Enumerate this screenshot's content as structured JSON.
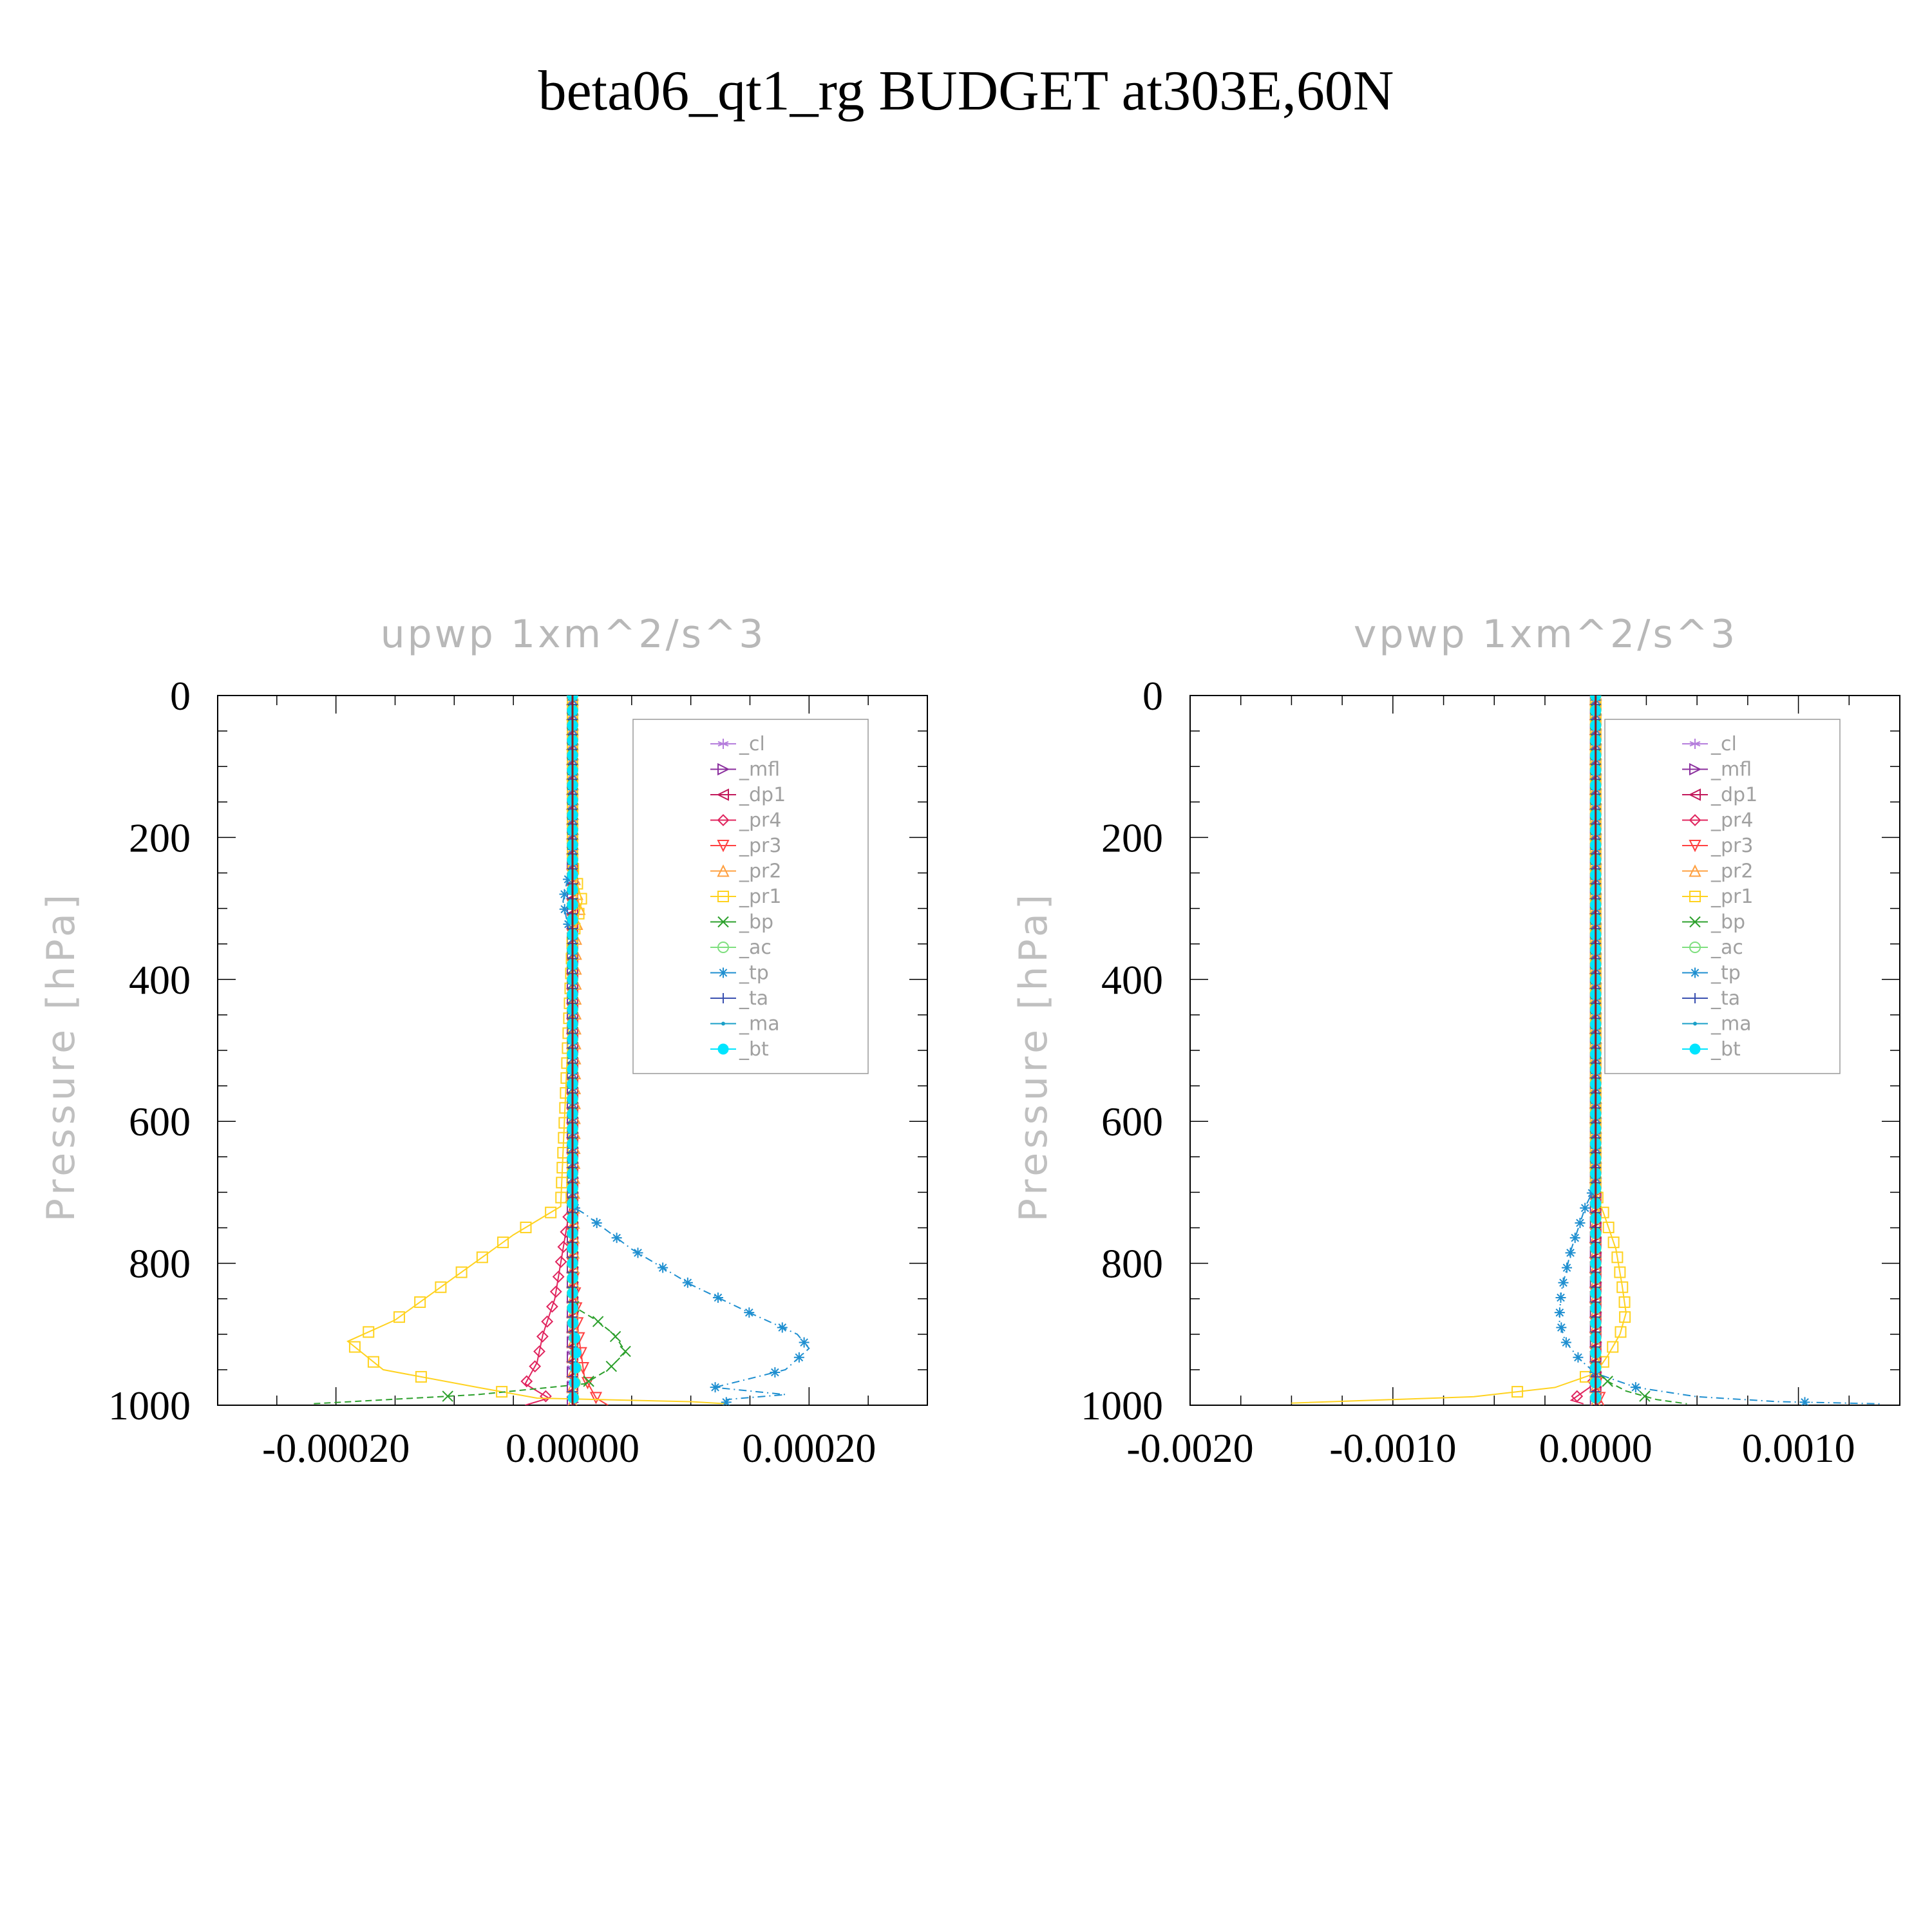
{
  "title": "beta06_qt1_rg  BUDGET at303E,60N",
  "colors": {
    "cl": "#b57edc",
    "mfl": "#8b2f9e",
    "dp1": "#c2185b",
    "pr4": "#e0245e",
    "pr3": "#ff4040",
    "pr2": "#ffa040",
    "pr1": "#ffd21f",
    "bp": "#2ca02c",
    "ac": "#7fdf7f",
    "tp": "#1f8fd0",
    "ta": "#3a50b0",
    "ma": "#1aa0c8",
    "bt": "#00e5ff"
  },
  "chart_data": [
    {
      "type": "line",
      "title": "upwp   1xm^2/s^3",
      "ylabel": "Pressure [hPa]",
      "xlabel": "",
      "xlim": [
        -0.0003,
        0.0003
      ],
      "ylim": [
        0,
        1000
      ],
      "y_inverted": true,
      "xticks": [
        -0.0002,
        0.0,
        0.0002
      ],
      "xtick_labels": [
        "-0.00020",
        "0.00000",
        "0.00020"
      ],
      "yticks": [
        0,
        200,
        400,
        600,
        800,
        1000
      ],
      "ytick_labels": [
        "0",
        "200",
        "400",
        "600",
        "800",
        "1000"
      ],
      "legend_position": "top-right",
      "series": [
        {
          "name": "_cl",
          "key": "cl",
          "marker": "star",
          "x": [
            0,
            0,
            0,
            0,
            0
          ],
          "y": [
            0,
            250,
            500,
            750,
            1000
          ]
        },
        {
          "name": "_mfl",
          "key": "mfl",
          "marker": "tri-right",
          "x": [
            0,
            0,
            0,
            0,
            0
          ],
          "y": [
            0,
            250,
            500,
            750,
            1000
          ]
        },
        {
          "name": "_dp1",
          "key": "dp1",
          "marker": "tri-left",
          "x": [
            0,
            0,
            0,
            0,
            0
          ],
          "y": [
            0,
            250,
            500,
            750,
            1000
          ]
        },
        {
          "name": "_pr4",
          "key": "pr4",
          "marker": "diamond",
          "x": [
            0,
            0,
            -5e-06,
            -1e-05,
            -1.5e-05,
            -2.5e-05,
            -3e-05,
            -4e-05,
            -2e-05,
            -4e-05
          ],
          "y": [
            0,
            700,
            750,
            800,
            850,
            900,
            940,
            970,
            990,
            1000
          ]
        },
        {
          "name": "_pr3",
          "key": "pr3",
          "marker": "tri-down",
          "x": [
            0,
            0,
            5e-06,
            1e-05,
            2e-05,
            3e-05
          ],
          "y": [
            0,
            800,
            900,
            960,
            990,
            1000
          ]
        },
        {
          "name": "_pr2",
          "key": "pr2",
          "marker": "tri-up",
          "x": [
            0,
            0,
            3e-06,
            6e-06,
            3e-06,
            0
          ],
          "y": [
            0,
            240,
            270,
            300,
            330,
            1000
          ]
        },
        {
          "name": "_pr1",
          "key": "pr1",
          "marker": "square",
          "x": [
            0,
            0,
            4e-06,
            8e-06,
            4e-06,
            0,
            -1e-05,
            -5e-05,
            -0.0001,
            -0.00015,
            -0.00019,
            -0.00016,
            -8e-05,
            -3e-05,
            0.0001,
            0.00013
          ],
          "y": [
            0,
            240,
            265,
            290,
            315,
            340,
            720,
            760,
            820,
            880,
            910,
            950,
            975,
            990,
            995,
            998
          ]
        },
        {
          "name": "_bp",
          "key": "bp",
          "marker": "x",
          "x": [
            0,
            0,
            2e-05,
            3.5e-05,
            4.5e-05,
            3e-05,
            1e-05,
            -8e-05,
            -0.00022
          ],
          "y": [
            0,
            860,
            880,
            900,
            925,
            950,
            970,
            985,
            998
          ]
        },
        {
          "name": "_ac",
          "key": "ac",
          "marker": "circle",
          "x": [
            0,
            0,
            2e-06,
            3e-06,
            2e-06,
            0
          ],
          "y": [
            0,
            880,
            910,
            940,
            970,
            1000
          ]
        },
        {
          "name": "_tp",
          "key": "tp",
          "marker": "asterisk",
          "x": [
            0,
            0,
            -5e-06,
            -8e-06,
            -5e-06,
            0,
            0,
            1e-05,
            5e-05,
            0.0001,
            0.00015,
            0.00019,
            0.0002,
            0.00018,
            0.00012,
            0.00018,
            0.00013
          ],
          "y": [
            0,
            240,
            265,
            290,
            315,
            340,
            720,
            730,
            780,
            830,
            870,
            900,
            920,
            950,
            975,
            985,
            992
          ]
        },
        {
          "name": "_ta",
          "key": "ta",
          "marker": "plus",
          "x": [
            0,
            0,
            0,
            0,
            0
          ],
          "y": [
            0,
            250,
            500,
            750,
            1000
          ]
        },
        {
          "name": "_ma",
          "key": "ma",
          "marker": "dot",
          "x": [
            0,
            0,
            0,
            0,
            0
          ],
          "y": [
            0,
            250,
            500,
            750,
            1000
          ]
        },
        {
          "name": "_bt",
          "key": "bt",
          "marker": "filled-circle",
          "x": [
            0,
            0,
            3e-06,
            2e-06,
            0
          ],
          "y": [
            0,
            880,
            920,
            960,
            1000
          ]
        }
      ]
    },
    {
      "type": "line",
      "title": "vpwp   1xm^2/s^3",
      "ylabel": "Pressure [hPa]",
      "xlabel": "",
      "xlim": [
        -0.002,
        0.0015
      ],
      "ylim": [
        0,
        1000
      ],
      "y_inverted": true,
      "xticks": [
        -0.002,
        -0.001,
        0.0,
        0.001
      ],
      "xtick_labels": [
        "-0.0020",
        "-0.0010",
        "0.0000",
        "0.0010"
      ],
      "yticks": [
        0,
        200,
        400,
        600,
        800,
        1000
      ],
      "ytick_labels": [
        "0",
        "200",
        "400",
        "600",
        "800",
        "1000"
      ],
      "legend_position": "top-right",
      "series": [
        {
          "name": "_cl",
          "key": "cl",
          "marker": "star",
          "x": [
            0,
            0,
            0,
            0,
            0
          ],
          "y": [
            0,
            250,
            500,
            750,
            1000
          ]
        },
        {
          "name": "_mfl",
          "key": "mfl",
          "marker": "tri-right",
          "x": [
            0,
            0,
            0,
            0,
            0
          ],
          "y": [
            0,
            250,
            500,
            750,
            1000
          ]
        },
        {
          "name": "_dp1",
          "key": "dp1",
          "marker": "tri-left",
          "x": [
            0,
            0,
            0,
            0,
            0
          ],
          "y": [
            0,
            250,
            500,
            750,
            1000
          ]
        },
        {
          "name": "_pr4",
          "key": "pr4",
          "marker": "diamond",
          "x": [
            0,
            0,
            -3e-05,
            -8e-05,
            -0.00012,
            -6e-05
          ],
          "y": [
            0,
            960,
            975,
            985,
            993,
            998
          ]
        },
        {
          "name": "_pr3",
          "key": "pr3",
          "marker": "tri-down",
          "x": [
            0,
            0,
            2e-05,
            4e-05
          ],
          "y": [
            0,
            960,
            990,
            1000
          ]
        },
        {
          "name": "_pr2",
          "key": "pr2",
          "marker": "tri-up",
          "x": [
            0,
            0,
            0,
            0
          ],
          "y": [
            0,
            300,
            700,
            1000
          ]
        },
        {
          "name": "_pr1",
          "key": "pr1",
          "marker": "square",
          "x": [
            0,
            0,
            4e-05,
            0.0001,
            0.00013,
            0.00015,
            0.00012,
            6e-05,
            0,
            -0.0002,
            -0.0006,
            -0.0015
          ],
          "y": [
            0,
            700,
            730,
            780,
            830,
            870,
            900,
            930,
            955,
            975,
            988,
            997
          ]
        },
        {
          "name": "_bp",
          "key": "bp",
          "marker": "x",
          "x": [
            0,
            0,
            5e-05,
            0.00015,
            0.0003,
            0.00045
          ],
          "y": [
            0,
            950,
            965,
            980,
            992,
            998
          ]
        },
        {
          "name": "_ac",
          "key": "ac",
          "marker": "circle",
          "x": [
            0,
            0,
            0,
            0
          ],
          "y": [
            0,
            300,
            700,
            1000
          ]
        },
        {
          "name": "_tp",
          "key": "tp",
          "marker": "asterisk",
          "x": [
            0,
            0,
            -5e-05,
            -0.00012,
            -0.00017,
            -0.00018,
            -0.00015,
            -8e-05,
            0,
            0.0002,
            0.0005,
            0.0009,
            0.0014
          ],
          "y": [
            0,
            690,
            720,
            780,
            840,
            880,
            910,
            935,
            955,
            975,
            988,
            995,
            998
          ]
        },
        {
          "name": "_ta",
          "key": "ta",
          "marker": "plus",
          "x": [
            0,
            0,
            0,
            0,
            0
          ],
          "y": [
            0,
            250,
            500,
            750,
            1000
          ]
        },
        {
          "name": "_ma",
          "key": "ma",
          "marker": "dot",
          "x": [
            0,
            0,
            0,
            0,
            0
          ],
          "y": [
            0,
            250,
            500,
            750,
            1000
          ]
        },
        {
          "name": "_bt",
          "key": "bt",
          "marker": "filled-circle",
          "x": [
            0,
            0,
            0,
            0,
            0
          ],
          "y": [
            0,
            250,
            500,
            750,
            1000
          ]
        }
      ]
    }
  ]
}
